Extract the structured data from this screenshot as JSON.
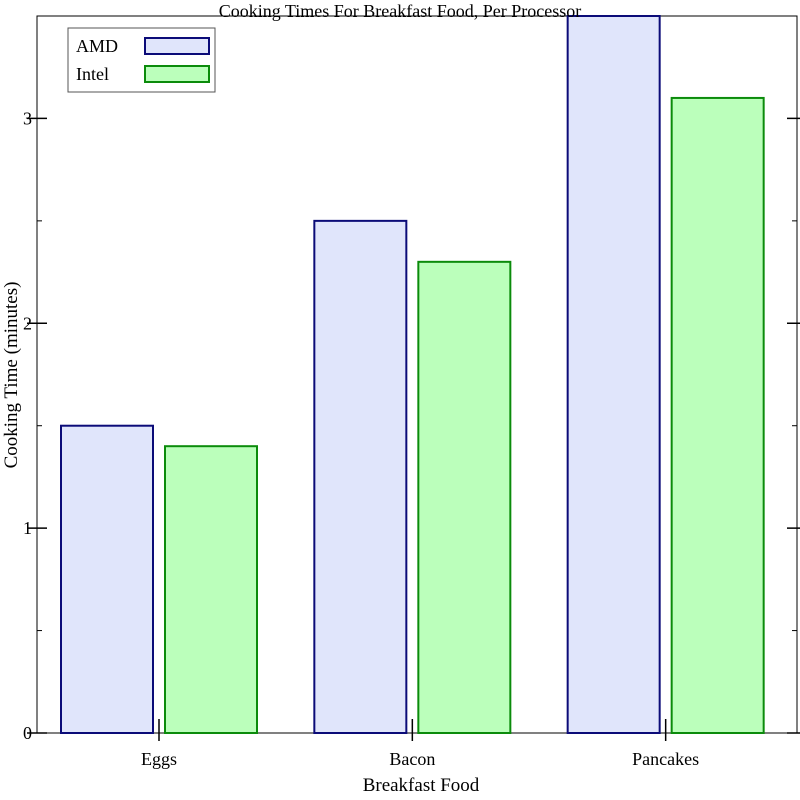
{
  "chart_data": {
    "type": "bar",
    "title": "Cooking Times For Breakfast Food, Per Processor",
    "xlabel": "Breakfast Food",
    "ylabel": "Cooking Time (minutes)",
    "categories": [
      "Eggs",
      "Bacon",
      "Pancakes"
    ],
    "series": [
      {
        "name": "AMD",
        "values": [
          1.5,
          2.5,
          3.5
        ],
        "fill": "#e0e5fb",
        "stroke": "#0b0b78"
      },
      {
        "name": "Intel",
        "values": [
          1.4,
          2.3,
          3.1
        ],
        "fill": "#bbffbb",
        "stroke": "#0b8b0b"
      }
    ],
    "ylim": [
      0,
      3.5
    ],
    "yticks": [
      0,
      1,
      2,
      3
    ],
    "grid": false,
    "legend_position": "top-left"
  }
}
